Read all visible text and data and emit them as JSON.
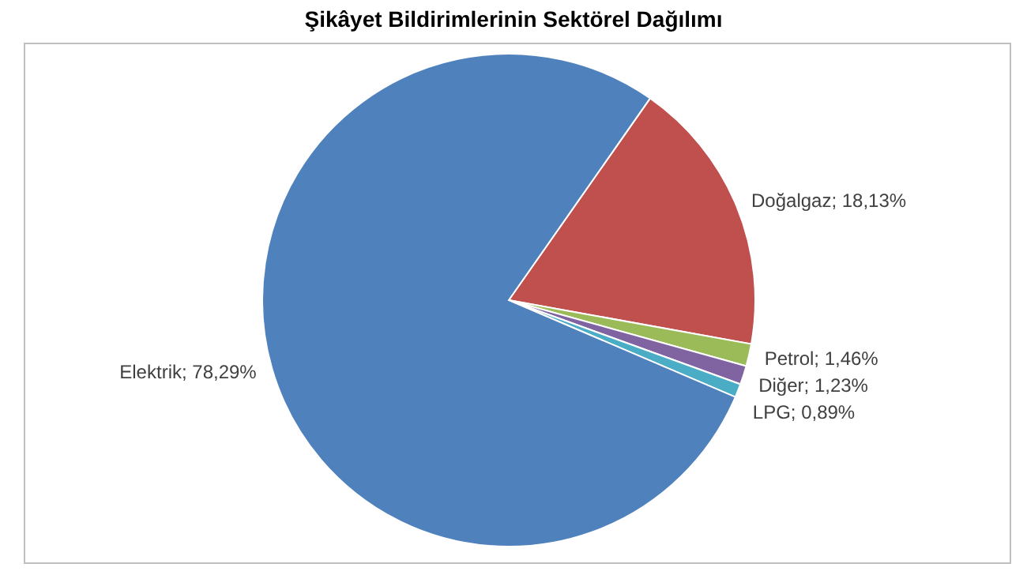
{
  "chart_data": {
    "type": "pie",
    "title": "Şikâyet Bildirimlerinin Sektörel Dağılımı",
    "categories": [
      "Doğalgaz",
      "Petrol",
      "Diğer",
      "LPG",
      "Elektrik"
    ],
    "values": [
      18.13,
      1.46,
      1.23,
      0.89,
      78.29
    ],
    "value_labels": [
      "18,13%",
      "1,46%",
      "1,23%",
      "0,89%",
      "78,29%"
    ],
    "colors": [
      "#c0504d",
      "#9bbb59",
      "#8064a2",
      "#4bacc6",
      "#4f81bd"
    ],
    "legend": false
  }
}
